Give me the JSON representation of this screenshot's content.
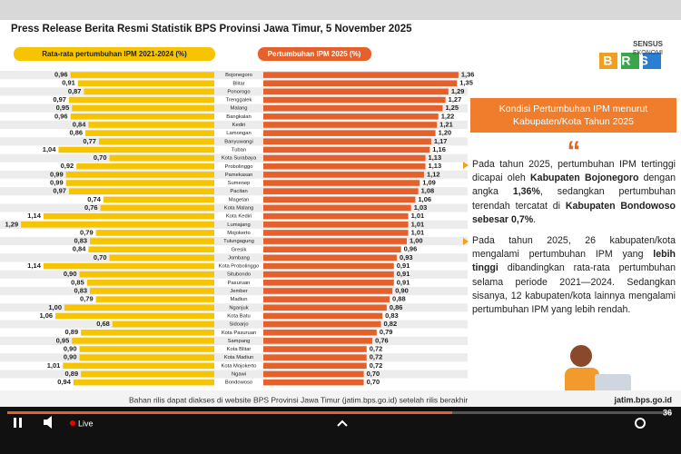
{
  "header": {
    "title": "Press Release Berita Resmi Statistik BPS Provinsi Jawa Timur, 5 November 2025"
  },
  "chart_data": {
    "type": "butterfly",
    "categories": [
      "Bojonegoro",
      "Blitar",
      "Ponorogo",
      "Trenggalek",
      "Malang",
      "Bangkalan",
      "Kediri",
      "Lamongan",
      "Banyuwangi",
      "Tuban",
      "Kota Surabaya",
      "Probolinggo",
      "Pamekasan",
      "Sumenep",
      "Pacitan",
      "Magetan",
      "Kota Malang",
      "Kota Kediri",
      "Lumajang",
      "Mojokerto",
      "Tulungagung",
      "Gresik",
      "Jombang",
      "Kota Probolinggo",
      "Situbondo",
      "Pasuruan",
      "Jember",
      "Madiun",
      "Nganjuk",
      "Kota Batu",
      "Sidoarjo",
      "Kota Pasuruan",
      "Sampang",
      "Kota Blitar",
      "Kota Madiun",
      "Kota Mojokerto",
      "Ngawi",
      "Bondowoso"
    ],
    "series": [
      {
        "name": "Rata-rata pertumbuhan IPM 2021-2024 (%)",
        "color": "#f7c400",
        "side": "left",
        "values": [
          0.96,
          0.91,
          0.87,
          0.97,
          0.95,
          0.96,
          0.84,
          0.86,
          0.77,
          1.04,
          0.7,
          0.92,
          0.99,
          0.99,
          0.97,
          0.74,
          0.76,
          1.14,
          1.29,
          0.79,
          0.83,
          0.84,
          0.7,
          1.14,
          0.9,
          0.85,
          0.83,
          0.79,
          1.0,
          1.06,
          0.68,
          0.89,
          0.95,
          0.9,
          0.9,
          1.01,
          0.89,
          0.94
        ],
        "value_labels": [
          "0,96",
          "0,91",
          "0,87",
          "0,97",
          "0,95",
          "0,96",
          "0,84",
          "0,86",
          "0,77",
          "1,04",
          "0,70",
          "0,92",
          "0,99",
          "0,99",
          "0,97",
          "0,74",
          "0,76",
          "1,14",
          "1,29",
          "0,79",
          "0,83",
          "0,84",
          "0,70",
          "1,14",
          "0,90",
          "0,85",
          "0,83",
          "0,79",
          "1,00",
          "1,06",
          "0,68",
          "0,89",
          "0,95",
          "0,90",
          "0,90",
          "1,01",
          "0,89",
          "0,94"
        ]
      },
      {
        "name": "Pertumbuhan IPM 2025 (%)",
        "color": "#e6602b",
        "side": "right",
        "values": [
          1.36,
          1.35,
          1.29,
          1.27,
          1.25,
          1.22,
          1.21,
          1.2,
          1.17,
          1.16,
          1.13,
          1.13,
          1.12,
          1.09,
          1.08,
          1.06,
          1.03,
          1.01,
          1.01,
          1.01,
          1.0,
          0.96,
          0.93,
          0.91,
          0.91,
          0.91,
          0.9,
          0.88,
          0.86,
          0.83,
          0.82,
          0.79,
          0.76,
          0.72,
          0.72,
          0.72,
          0.7,
          0.7
        ],
        "value_labels": [
          "1,36",
          "1,35",
          "1,29",
          "1,27",
          "1,25",
          "1,22",
          "1,21",
          "1,20",
          "1,17",
          "1,16",
          "1,13",
          "1,13",
          "1,12",
          "1,09",
          "1,08",
          "1,06",
          "1,03",
          "1,01",
          "1,01",
          "1,01",
          "1,00",
          "0,96",
          "0,93",
          "0,91",
          "0,91",
          "0,91",
          "0,90",
          "0,88",
          "0,86",
          "0,83",
          "0,82",
          "0,79",
          "0,76",
          "0,72",
          "0,72",
          "0,72",
          "0,70",
          "0,70"
        ]
      }
    ]
  },
  "logo": {
    "top": "SENSUS",
    "middle": "EKONOMI",
    "letters": "BRS"
  },
  "panel": {
    "title": "Kondisi Pertumbuhan IPM menurut Kabupaten/Kota Tahun 2025",
    "paragraphs": [
      [
        {
          "text": "Pada tahun 2025, pertumbuhan IPM tertinggi dicapai oleh "
        },
        {
          "text": "Kabupaten Bojonegoro",
          "bold": true
        },
        {
          "text": " dengan angka "
        },
        {
          "text": "1,36%",
          "bold": true
        },
        {
          "text": ", sedangkan pertumbuhan terendah tercatat di "
        },
        {
          "text": "Kabupaten Bondowoso sebesar 0,7%",
          "bold": true
        },
        {
          "text": "."
        }
      ],
      [
        {
          "text": "Pada tahun 2025, 26 kabupaten/kota mengalami pertumbuhan IPM yang "
        },
        {
          "text": "lebih tinggi",
          "bold": true
        },
        {
          "text": " dibandingkan rata-rata pertumbuhan selama periode 2021—2024. Sedangkan sisanya, 12 kabupaten/kota lainnya mengalami pertumbuhan IPM yang lebih rendah."
        }
      ]
    ]
  },
  "footer": {
    "note": "Bahan rilis dapat diakses di website BPS Provinsi Jawa Timur (jatim.bps.go.id) setelah rilis berakhir",
    "website": "jatim.bps.go.id"
  },
  "player": {
    "live": "Live",
    "number": "36"
  }
}
